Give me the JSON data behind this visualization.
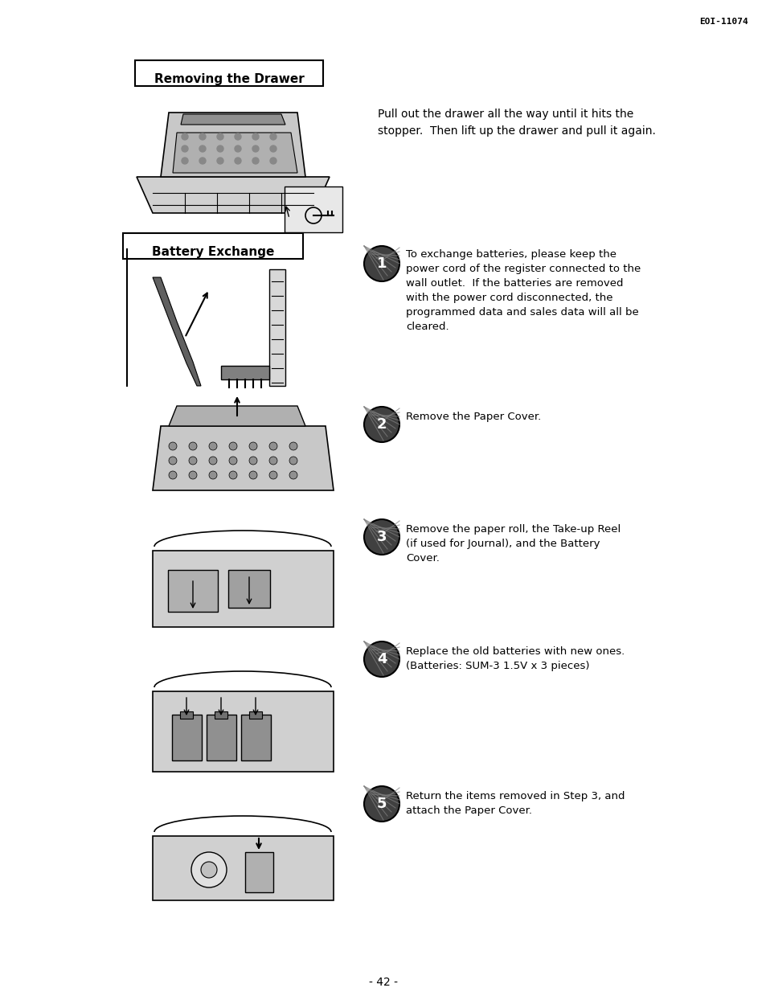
{
  "bg_color": "#ffffff",
  "page_number": "- 42 -",
  "header_code": "EOI-11074",
  "section1_title": "Removing the Drawer",
  "section1_text": "Pull out the drawer all the way until it hits the\nstopper.  Then lift up the drawer and pull it again.",
  "section2_title": "Battery Exchange",
  "step1_text": "To exchange batteries, please keep the\npower cord of the register connected to the\nwall outlet.  If the batteries are removed\nwith the power cord disconnected, the\nprogrammed data and sales data will all be\ncleared.",
  "step2_text": "Remove the Paper Cover.",
  "step3_text": "Remove the paper roll, the Take-up Reel\n(if used for Journal), and the Battery\nCover.",
  "step4_text": "Replace the old batteries with new ones.\n(Batteries: SUM-3 1.5V x 3 pieces)",
  "step5_text": "Return the items removed in Step 3, and\nattach the Paper Cover."
}
